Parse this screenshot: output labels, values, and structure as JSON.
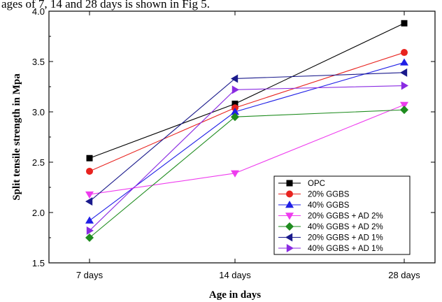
{
  "caption": "ages of 7, 14 and 28 days is shown in Fig 5.",
  "chart_data": {
    "type": "line",
    "categories": [
      "7 days",
      "14 days",
      "28 days"
    ],
    "xlabel": "Age in days",
    "ylabel": "Split tensile strength in Mpa",
    "ylim": [
      1.5,
      4.0
    ],
    "yticks": [
      "1.5",
      "2.0",
      "2.5",
      "3.0",
      "3.5",
      "4.0"
    ],
    "grid": false,
    "legend_position": "bottom-right",
    "series": [
      {
        "name": "OPC",
        "color": "#000000",
        "marker": "square",
        "values": [
          2.54,
          3.08,
          3.88
        ]
      },
      {
        "name": "20% GGBS",
        "color": "#e8231f",
        "marker": "circle",
        "values": [
          2.41,
          3.04,
          3.59
        ]
      },
      {
        "name": "40% GGBS",
        "color": "#1f1fe6",
        "marker": "triangle-up",
        "values": [
          1.92,
          3.0,
          3.49
        ]
      },
      {
        "name": "20% GGBS + AD 2%",
        "color": "#ee3cee",
        "marker": "triangle-down",
        "values": [
          2.18,
          2.39,
          3.07
        ]
      },
      {
        "name": "40% GGBS + AD 2%",
        "color": "#1f8c1f",
        "marker": "diamond",
        "values": [
          1.75,
          2.95,
          3.02
        ]
      },
      {
        "name": "20% GGBS + AD 1%",
        "color": "#1a1a8c",
        "marker": "triangle-left",
        "values": [
          2.11,
          3.33,
          3.39
        ]
      },
      {
        "name": "40% GGBS + AD 1%",
        "color": "#8a2be2",
        "marker": "triangle-right",
        "values": [
          1.82,
          3.22,
          3.26
        ]
      }
    ]
  }
}
